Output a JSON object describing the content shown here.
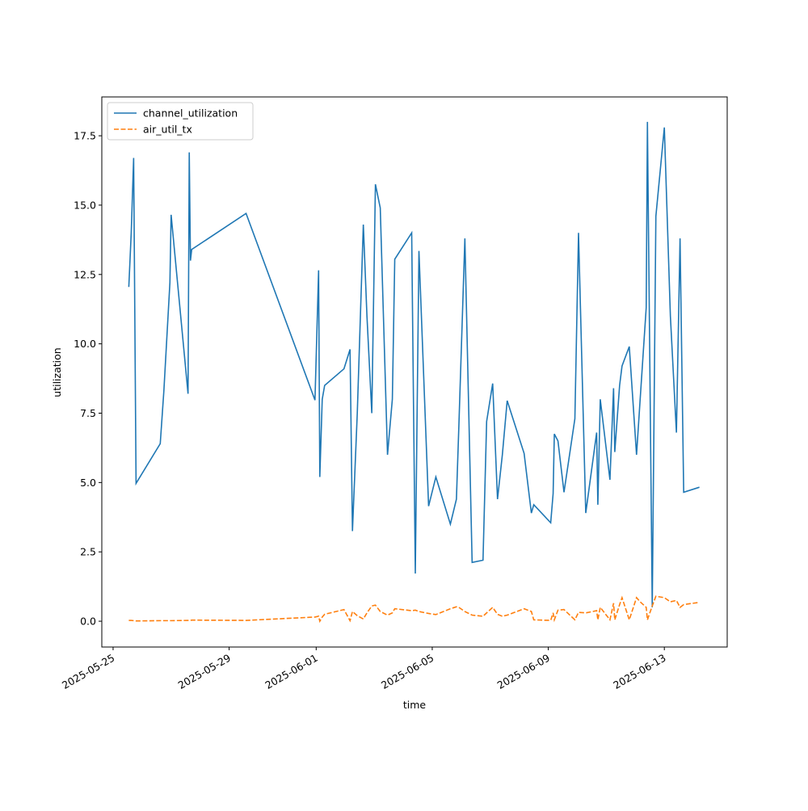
{
  "chart_data": {
    "type": "line",
    "xlabel": "time",
    "ylabel": "utilization",
    "x": [
      "2025-05-25T13:00",
      "2025-05-25T15:00",
      "2025-05-25T17:00",
      "2025-05-25T19:00",
      "2025-05-26T15:00",
      "2025-05-26T18:00",
      "2025-05-26T23:00",
      "2025-05-27T00:00",
      "2025-05-27T14:00",
      "2025-05-27T15:00",
      "2025-05-27T16:00",
      "2025-05-27T17:00",
      "2025-05-29T14:00",
      "2025-05-31T23:00",
      "2025-06-01T02:00",
      "2025-06-01T03:00",
      "2025-06-01T05:00",
      "2025-06-01T07:00",
      "2025-06-01T23:00",
      "2025-06-02T04:00",
      "2025-06-02T06:00",
      "2025-06-02T10:00",
      "2025-06-02T15:00",
      "2025-06-02T18:00",
      "2025-06-02T22:00",
      "2025-06-03T01:00",
      "2025-06-03T05:00",
      "2025-06-03T11:00",
      "2025-06-03T15:00",
      "2025-06-03T17:00",
      "2025-06-04T07:00",
      "2025-06-04T10:00",
      "2025-06-04T13:00",
      "2025-06-04T21:00",
      "2025-06-05T03:00",
      "2025-06-05T15:00",
      "2025-06-05T20:00",
      "2025-06-05T22:00",
      "2025-06-06T03:00",
      "2025-06-06T09:00",
      "2025-06-06T18:00",
      "2025-06-06T21:00",
      "2025-06-07T02:00",
      "2025-06-07T06:00",
      "2025-06-07T10:00",
      "2025-06-07T14:00",
      "2025-06-08T04:00",
      "2025-06-08T10:00",
      "2025-06-08T12:00",
      "2025-06-09T02:00",
      "2025-06-09T04:00",
      "2025-06-09T05:00",
      "2025-06-09T08:00",
      "2025-06-09T13:00",
      "2025-06-09T22:00",
      "2025-06-10T01:00",
      "2025-06-10T07:00",
      "2025-06-10T16:00",
      "2025-06-10T17:00",
      "2025-06-10T19:00",
      "2025-06-11T03:00",
      "2025-06-11T06:00",
      "2025-06-11T07:00",
      "2025-06-11T11:00",
      "2025-06-11T13:00",
      "2025-06-11T19:00",
      "2025-06-12T01:00",
      "2025-06-12T04:00",
      "2025-06-12T09:00",
      "2025-06-12T10:00",
      "2025-06-12T14:00",
      "2025-06-12T17:00",
      "2025-06-13T00:00",
      "2025-06-13T05:00",
      "2025-06-13T10:00",
      "2025-06-13T13:00",
      "2025-06-13T16:00",
      "2025-06-14T05:00"
    ],
    "series": [
      {
        "name": "channel_utilization",
        "color": "#1f77b4",
        "dash": "solid",
        "values": [
          12.05,
          14.0,
          16.7,
          4.97,
          6.4,
          8.3,
          12.2,
          14.65,
          8.2,
          16.9,
          13.0,
          13.4,
          14.7,
          7.97,
          12.65,
          5.2,
          8.0,
          8.5,
          9.1,
          9.8,
          3.25,
          7.5,
          14.3,
          11.0,
          7.5,
          15.75,
          14.9,
          6.0,
          8.0,
          13.05,
          14.0,
          1.72,
          13.35,
          4.15,
          5.2,
          3.5,
          4.4,
          7.0,
          13.8,
          2.12,
          2.2,
          7.2,
          8.57,
          4.4,
          6.0,
          7.95,
          6.05,
          3.9,
          4.2,
          3.55,
          4.6,
          6.75,
          6.5,
          4.65,
          7.3,
          14.0,
          3.9,
          6.8,
          4.2,
          8.0,
          5.1,
          8.4,
          6.1,
          8.5,
          9.2,
          9.9,
          6.0,
          8.0,
          11.3,
          18.0,
          0.5,
          14.6,
          17.8,
          11.0,
          6.8,
          13.8,
          4.65,
          4.83
        ]
      },
      {
        "name": "air_util_tx",
        "color": "#ff7f0e",
        "dash": "dashed",
        "values": [
          0.03,
          0.03,
          0.02,
          0.01,
          0.02,
          0.02,
          0.02,
          0.02,
          0.03,
          0.03,
          0.03,
          0.04,
          0.03,
          0.15,
          0.18,
          0.0,
          0.15,
          0.25,
          0.42,
          0.02,
          0.35,
          0.2,
          0.08,
          0.3,
          0.55,
          0.58,
          0.35,
          0.22,
          0.3,
          0.45,
          0.38,
          0.4,
          0.35,
          0.28,
          0.24,
          0.45,
          0.52,
          0.5,
          0.35,
          0.22,
          0.18,
          0.3,
          0.5,
          0.25,
          0.18,
          0.22,
          0.45,
          0.35,
          0.05,
          0.03,
          0.3,
          0.05,
          0.4,
          0.42,
          0.05,
          0.32,
          0.3,
          0.38,
          0.05,
          0.5,
          0.05,
          0.65,
          0.05,
          0.6,
          0.85,
          0.05,
          0.85,
          0.7,
          0.5,
          0.05,
          0.55,
          0.9,
          0.85,
          0.7,
          0.75,
          0.5,
          0.6,
          0.68
        ]
      }
    ],
    "xlim": [
      "2025-05-24T14:40",
      "2025-06-15T04:00"
    ],
    "xticks": [
      "2025-05-25",
      "2025-05-29",
      "2025-06-01",
      "2025-06-05",
      "2025-06-09",
      "2025-06-13"
    ],
    "ylim": [
      -0.93,
      18.9
    ],
    "yticks": [
      {
        "value": 0,
        "label": "0.0"
      },
      2.5,
      {
        "value": 5,
        "label": "5.0"
      },
      7.5,
      {
        "value": 10,
        "label": "10.0"
      },
      12.5,
      {
        "value": 15,
        "label": "15.0"
      },
      17.5
    ],
    "legend": "upper left",
    "grid": false
  }
}
